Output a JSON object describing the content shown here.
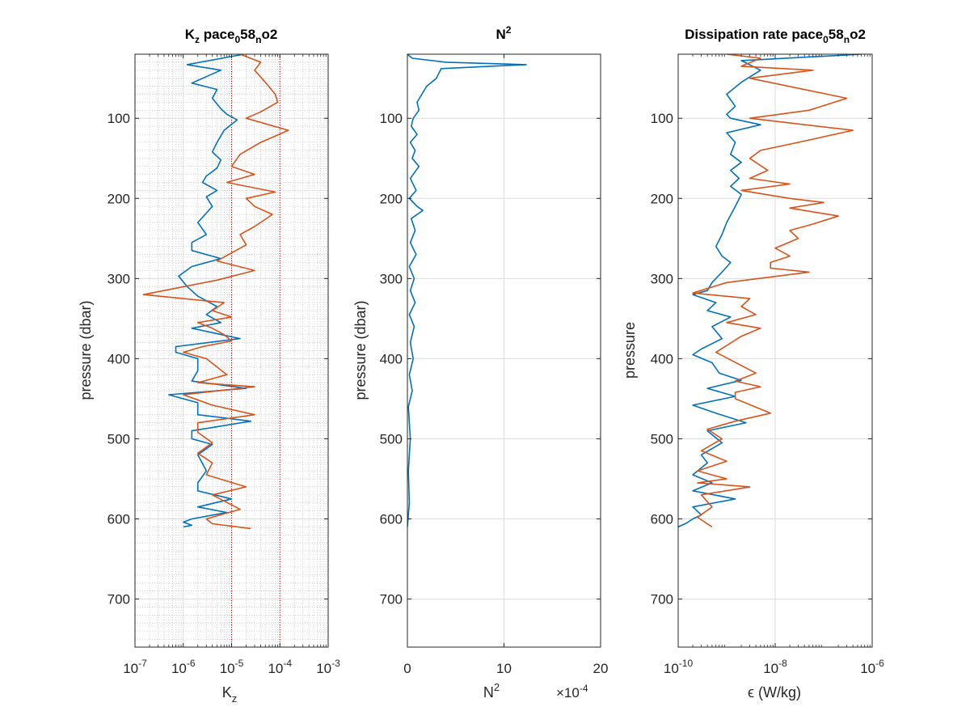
{
  "colors": {
    "series1": "#0072BD",
    "series2": "#D95319",
    "ref_lines": "#CC0000",
    "axis": "#262626",
    "grid": "#DCDCDC"
  },
  "chart_data": [
    {
      "type": "line",
      "title": {
        "base": "K",
        "sub": "z",
        "mid": " pace",
        "sub2": "0",
        "mid2": "58",
        "sub3": "n",
        "end": "o2"
      },
      "xlabel": {
        "base": "K",
        "sub": "z"
      },
      "ylabel": "pressure (dbar)",
      "xscale": "log",
      "xlim": [
        1e-07,
        0.001
      ],
      "ylim": [
        20,
        760
      ],
      "yreversed": true,
      "grid": "major+minor",
      "xticks": [
        1e-07,
        1e-06,
        1e-05,
        0.0001,
        0.001
      ],
      "xtick_labels": [
        {
          "base": "10",
          "exp": "-7"
        },
        {
          "base": "10",
          "exp": "-6"
        },
        {
          "base": "10",
          "exp": "-5"
        },
        {
          "base": "10",
          "exp": "-4"
        },
        {
          "base": "10",
          "exp": "-3"
        }
      ],
      "yticks": [
        100,
        200,
        300,
        400,
        500,
        600,
        700
      ],
      "ytick_labels": [
        "100",
        "200",
        "300",
        "400",
        "500",
        "600",
        "700"
      ],
      "reference_lines_x": [
        1e-05,
        0.0001
      ],
      "series": [
        {
          "x": [
            1.8e-05,
            1.2e-06,
            6e-06,
            3e-06,
            1.5e-06,
            5e-06,
            4e-06,
            6e-06,
            8e-06,
            1.3e-05,
            7e-06,
            5e-06,
            4e-06,
            6e-06,
            5e-06,
            3e-06,
            2.5e-06,
            5e-06,
            3e-06,
            4e-06,
            2e-06,
            3e-06,
            1.5e-06,
            1.5e-06,
            6e-06,
            1.5e-06,
            8e-07,
            1.2e-06,
            2e-06,
            5e-06,
            3e-06,
            6e-06,
            1.5e-06,
            1.5e-05,
            7e-07,
            7e-07,
            2e-06,
            2e-06,
            1.5e-06,
            2e-05,
            5e-07,
            2e-06,
            2e-06,
            2.5e-05,
            1.5e-06,
            1.5e-06,
            4e-06,
            2e-06,
            3e-06,
            2e-06,
            2e-06,
            1e-05,
            2e-06,
            8e-06,
            1.5e-06,
            1e-06,
            1.5e-06,
            1e-06
          ],
          "y": [
            20,
            33,
            40,
            48,
            56,
            64,
            75,
            88,
            95,
            102,
            115,
            130,
            142,
            152,
            162,
            172,
            180,
            190,
            198,
            210,
            230,
            245,
            255,
            265,
            275,
            285,
            297,
            310,
            322,
            335,
            345,
            355,
            362,
            375,
            385,
            392,
            400,
            415,
            428,
            437,
            445,
            455,
            470,
            478,
            490,
            500,
            507,
            520,
            540,
            555,
            565,
            575,
            585,
            592,
            600,
            604,
            608,
            610
          ]
        },
        {
          "x": [
            1.5e-05,
            4e-05,
            3e-05,
            5e-05,
            8e-05,
            9e-05,
            4e-05,
            2e-05,
            0.00015,
            4e-05,
            1.5e-05,
            1e-05,
            3e-05,
            8e-06,
            8e-05,
            2e-05,
            3e-05,
            7e-05,
            3e-05,
            1.5e-05,
            2e-05,
            1e-05,
            5e-06,
            3e-05,
            5e-06,
            1.5e-07,
            7e-06,
            4e-06,
            1e-05,
            2e-06,
            4e-06,
            7e-06,
            1e-05,
            2.5e-06,
            1e-06,
            3e-06,
            8e-06,
            2e-06,
            3e-05,
            1e-06,
            4e-06,
            3e-05,
            2e-06,
            2e-06,
            4e-06,
            2e-06,
            4e-06,
            3e-06,
            2e-05,
            4e-06,
            1.5e-05,
            3e-06,
            4e-06,
            2.5e-05
          ],
          "y": [
            20,
            30,
            40,
            55,
            70,
            80,
            92,
            100,
            115,
            130,
            145,
            160,
            170,
            180,
            192,
            200,
            210,
            220,
            235,
            245,
            258,
            268,
            278,
            290,
            302,
            320,
            330,
            340,
            348,
            355,
            362,
            370,
            378,
            385,
            392,
            400,
            420,
            430,
            435,
            445,
            458,
            470,
            480,
            492,
            505,
            518,
            530,
            545,
            560,
            570,
            588,
            600,
            606,
            612
          ]
        }
      ]
    },
    {
      "type": "line",
      "title": {
        "base": "N",
        "exp": "2"
      },
      "xlabel": {
        "base": "N",
        "exp": "2"
      },
      "ylabel": "pressure (dbar)",
      "xscale": "linear",
      "xlim": [
        0,
        20
      ],
      "ylim": [
        20,
        760
      ],
      "yreversed": true,
      "grid": "major",
      "xticks": [
        0,
        10,
        20
      ],
      "xtick_labels": [
        "0",
        "10",
        "20"
      ],
      "x_multiplier": {
        "prefix": "×10",
        "exp": "-4"
      },
      "yticks": [
        100,
        200,
        300,
        400,
        500,
        600,
        700
      ],
      "ytick_labels": [
        "100",
        "200",
        "300",
        "400",
        "500",
        "600",
        "700"
      ],
      "series": [
        {
          "x": [
            0,
            0.5,
            4,
            12.3,
            3.5,
            3,
            2,
            1.5,
            1,
            1.2,
            0.6,
            0.4,
            1,
            0.3,
            0.8,
            0.5,
            1.2,
            0.3,
            0.9,
            0.2,
            1,
            1.6,
            0.4,
            0.8,
            0.3,
            0.9,
            0.2,
            0.7,
            0.3,
            0.8,
            0.2,
            0.7,
            0.3,
            0.6,
            0.2,
            0.5,
            0.1,
            0.3,
            0.1,
            0.2,
            0
          ],
          "y": [
            20,
            25,
            30,
            33,
            38,
            50,
            60,
            70,
            80,
            90,
            100,
            110,
            120,
            130,
            140,
            150,
            160,
            175,
            190,
            200,
            210,
            215,
            225,
            240,
            255,
            270,
            285,
            300,
            315,
            330,
            345,
            360,
            380,
            400,
            420,
            440,
            460,
            500,
            540,
            580,
            610
          ]
        }
      ]
    },
    {
      "type": "line",
      "title": {
        "base": "Dissipation rate pace",
        "sub": "0",
        "mid": "58",
        "sub2": "n",
        "end": "o2"
      },
      "xlabel": "ϵ (W/kg)",
      "ylabel": "pressure",
      "xscale": "log",
      "xlim": [
        1e-10,
        1e-06
      ],
      "ylim": [
        20,
        760
      ],
      "yreversed": true,
      "grid": "major",
      "xticks": [
        1e-10,
        1e-08,
        1e-06
      ],
      "xtick_labels": [
        {
          "base": "10",
          "exp": "-10"
        },
        {
          "base": "10",
          "exp": "-8"
        },
        {
          "base": "10",
          "exp": "-6"
        }
      ],
      "yticks": [
        100,
        200,
        300,
        400,
        500,
        600,
        700
      ],
      "ytick_labels": [
        "100",
        "200",
        "300",
        "400",
        "500",
        "600",
        "700"
      ],
      "series": [
        {
          "x": [
            6e-07,
            2e-09,
            5e-09,
            2e-09,
            1e-09,
            1.5e-09,
            1e-09,
            1.2e-09,
            5e-09,
            1e-09,
            1.5e-09,
            1.2e-09,
            2e-09,
            1.2e-09,
            1.8e-09,
            1.2e-09,
            2e-09,
            1.5e-09,
            1e-09,
            8e-10,
            6e-10,
            8e-10,
            1.2e-09,
            8e-10,
            5e-10,
            4e-10,
            2e-10,
            6e-10,
            4e-10,
            1.2e-09,
            5e-10,
            8e-10,
            3e-10,
            2e-10,
            5e-10,
            7e-10,
            2e-09,
            4e-10,
            1.5e-09,
            2e-10,
            6e-10,
            2.5e-09,
            4e-10,
            8e-10,
            3e-10,
            4e-10,
            2e-10,
            5e-10,
            2e-10,
            1.5e-09,
            2e-10,
            3e-10,
            2e-10,
            1.5e-10,
            1e-10
          ],
          "y": [
            20,
            28,
            40,
            55,
            70,
            85,
            95,
            100,
            108,
            118,
            130,
            145,
            155,
            165,
            175,
            185,
            195,
            210,
            230,
            245,
            260,
            272,
            280,
            292,
            305,
            315,
            320,
            330,
            340,
            348,
            360,
            375,
            388,
            395,
            405,
            418,
            427,
            437,
            447,
            458,
            468,
            480,
            490,
            505,
            520,
            530,
            545,
            555,
            565,
            575,
            585,
            595,
            600,
            605,
            610
          ]
        },
        {
          "x": [
            1e-09,
            5e-09,
            2e-09,
            6e-08,
            3e-09,
            3e-07,
            5e-08,
            3e-09,
            4e-07,
            3e-08,
            5e-09,
            3e-09,
            7e-09,
            3e-09,
            2e-08,
            2e-09,
            2e-08,
            1e-07,
            2e-08,
            2e-07,
            6e-08,
            2e-08,
            3e-08,
            1e-08,
            2e-08,
            8e-09,
            8e-09,
            5e-08,
            1e-09,
            2e-10,
            3e-09,
            2e-09,
            4e-09,
            1e-09,
            5e-09,
            2e-09,
            6e-10,
            4e-09,
            1.5e-09,
            5e-09,
            1.5e-09,
            1.5e-09,
            8e-09,
            1.5e-09,
            4e-10,
            8e-10,
            3e-10,
            1e-09,
            2.5e-10,
            1e-09,
            2.5e-10,
            3e-09,
            3e-10,
            5e-10,
            2.5e-10,
            5e-10
          ],
          "y": [
            20,
            25,
            35,
            40,
            50,
            75,
            90,
            100,
            115,
            130,
            140,
            150,
            165,
            175,
            182,
            190,
            200,
            205,
            212,
            222,
            232,
            240,
            250,
            262,
            272,
            280,
            287,
            292,
            305,
            318,
            325,
            335,
            345,
            355,
            362,
            372,
            392,
            418,
            428,
            435,
            442,
            450,
            468,
            478,
            488,
            500,
            515,
            528,
            540,
            550,
            555,
            560,
            570,
            585,
            598,
            610
          ]
        }
      ]
    }
  ]
}
